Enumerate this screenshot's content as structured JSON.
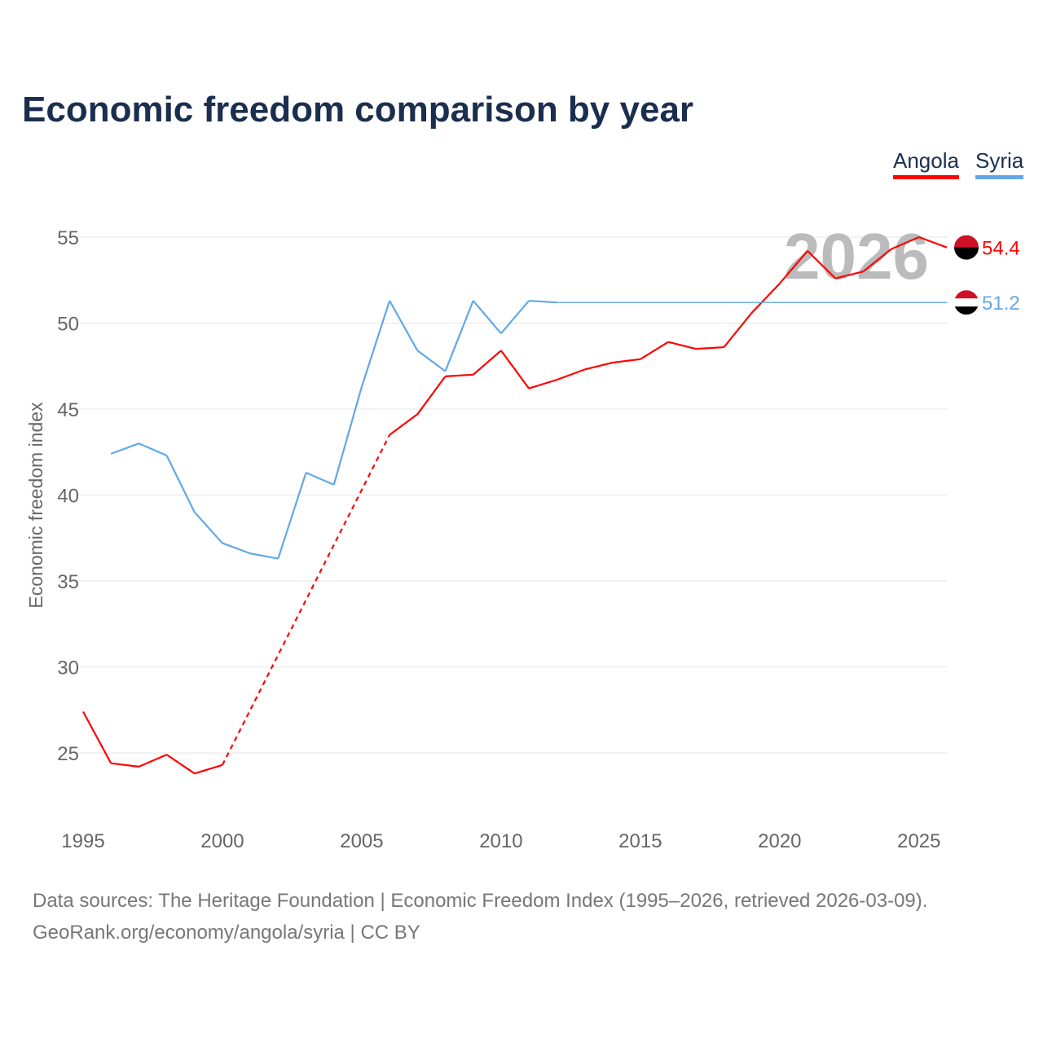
{
  "chart_data": {
    "type": "line",
    "title": "Economic freedom comparison by year",
    "xlabel": "",
    "ylabel": "Economic freedom index",
    "xlim": [
      1995,
      2026
    ],
    "ylim": [
      21.5,
      56.5
    ],
    "yticks": [
      25,
      30,
      35,
      40,
      45,
      50,
      55
    ],
    "xticks": [
      1995,
      2000,
      2005,
      2010,
      2015,
      2020,
      2025
    ],
    "grid": true,
    "legend_position": "top-right",
    "watermark_year": "2026",
    "series": [
      {
        "name": "Angola",
        "color": "#ff0000",
        "end_label": "54.4",
        "x": [
          1995,
          1996,
          1997,
          1998,
          1999,
          2000,
          2006,
          2007,
          2008,
          2009,
          2010,
          2011,
          2012,
          2013,
          2014,
          2015,
          2016,
          2017,
          2018,
          2019,
          2020,
          2021,
          2022,
          2023,
          2024,
          2025,
          2026
        ],
        "y": [
          27.4,
          24.4,
          24.2,
          24.9,
          23.8,
          24.3,
          43.5,
          44.7,
          46.9,
          47.0,
          48.4,
          46.2,
          46.7,
          47.3,
          47.7,
          47.9,
          48.9,
          48.5,
          48.6,
          50.6,
          52.3,
          54.2,
          52.6,
          53.0,
          54.3,
          55.0,
          54.4
        ],
        "dashed_gap": [
          2000,
          2006
        ]
      },
      {
        "name": "Syria",
        "color": "#62a8e8",
        "end_label": "51.2",
        "x": [
          1996,
          1997,
          1998,
          1999,
          2000,
          2001,
          2002,
          2003,
          2004,
          2005,
          2006,
          2007,
          2008,
          2009,
          2010,
          2011,
          2012,
          2026
        ],
        "y": [
          42.4,
          43.0,
          42.3,
          39.0,
          37.2,
          36.6,
          36.3,
          41.3,
          40.6,
          46.3,
          51.3,
          48.4,
          47.2,
          51.3,
          49.4,
          51.3,
          51.2,
          51.2
        ],
        "carried_forward_from": 2012
      }
    ]
  },
  "footer": {
    "line1": "Data sources: The Heritage Foundation | Economic Freedom Index (1995–2026, retrieved 2026-03-09).",
    "line2": "GeoRank.org/economy/angola/syria | CC BY"
  }
}
